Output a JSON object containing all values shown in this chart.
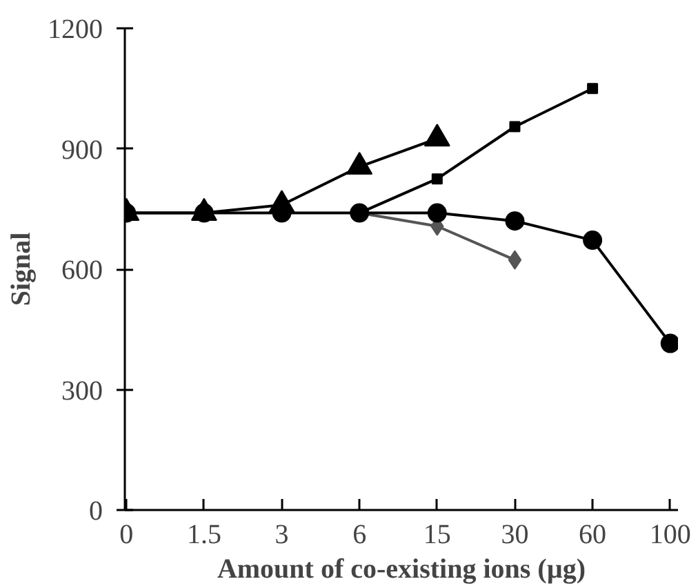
{
  "chart_data": {
    "type": "line",
    "xlabel": "Amount of co-existing ions (µg)",
    "ylabel": "Signal",
    "categories": [
      "0",
      "1.5",
      "3",
      "6",
      "15",
      "30",
      "60",
      "100"
    ],
    "ylim": [
      0,
      1200
    ],
    "yticks": [
      0,
      300,
      600,
      900,
      1200
    ],
    "grid": false,
    "line_style": "solid",
    "series": [
      {
        "color": "#000000",
        "marker": "triangle",
        "values": [
          740,
          740,
          760,
          855,
          925,
          null,
          null,
          null
        ]
      },
      {
        "color": "#000000",
        "marker": "square",
        "values": [
          null,
          null,
          null,
          740,
          825,
          955,
          1050,
          null
        ]
      },
      {
        "color": "#555555",
        "marker": "diamond",
        "values": [
          null,
          null,
          null,
          740,
          707,
          623,
          null,
          null
        ]
      },
      {
        "color": "#000000",
        "marker": "circle",
        "values": [
          740,
          740,
          740,
          740,
          740,
          720,
          672,
          415
        ]
      }
    ]
  }
}
